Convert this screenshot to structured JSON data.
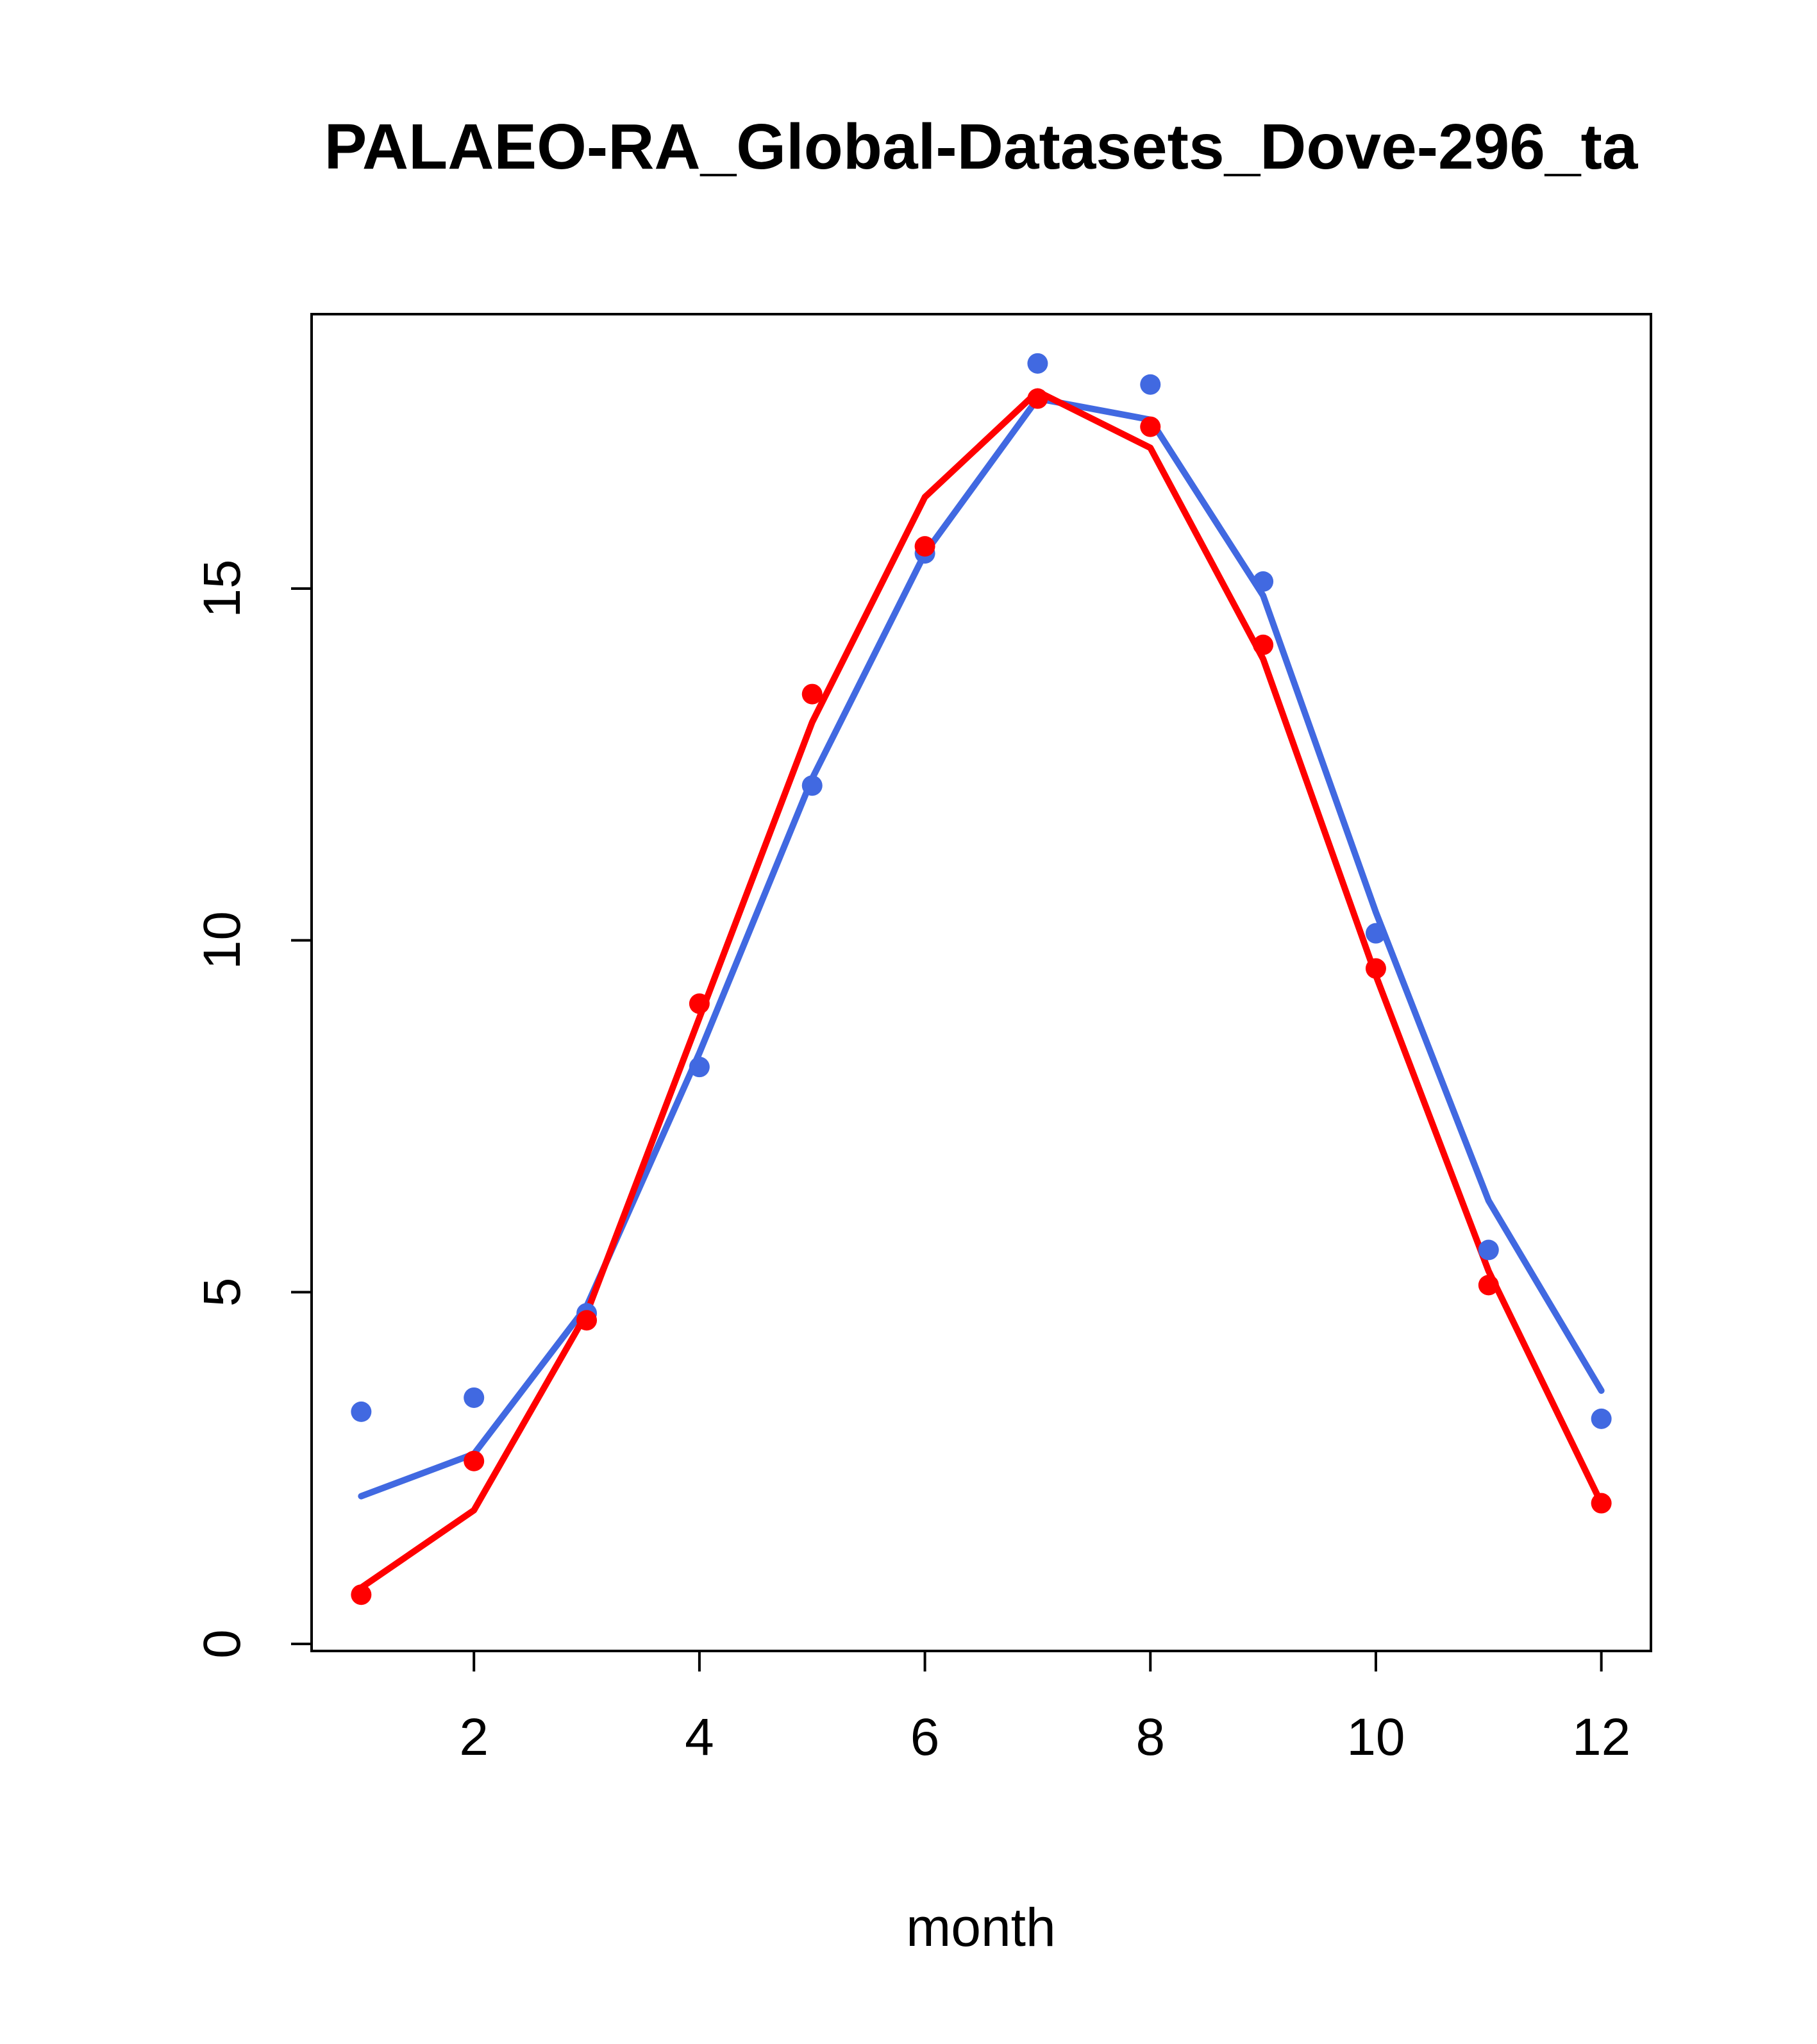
{
  "chart_data": {
    "type": "line",
    "title": "PALAEO-RA_Global-Datasets_Dove-296_ta",
    "xlabel": "month",
    "ylabel": "",
    "x": [
      1,
      2,
      3,
      4,
      5,
      6,
      7,
      8,
      9,
      10,
      11,
      12
    ],
    "xlim": [
      0.56,
      12.44
    ],
    "ylim": [
      -0.1,
      18.9
    ],
    "xticks": [
      2,
      4,
      6,
      8,
      10,
      12
    ],
    "yticks": [
      0,
      5,
      10,
      15
    ],
    "grid": false,
    "legend": "none",
    "colors": {
      "series_blue": "#4169E1",
      "series_red": "#FF0000",
      "axis": "#000000",
      "background": "#FFFFFF"
    },
    "series": [
      {
        "name": "blue-line",
        "type": "line",
        "color": "#4169E1",
        "values": [
          2.1,
          2.7,
          4.8,
          8.4,
          12.3,
          15.5,
          17.7,
          17.4,
          14.9,
          10.4,
          6.3,
          3.6
        ]
      },
      {
        "name": "red-line",
        "type": "line",
        "color": "#FF0000",
        "values": [
          0.8,
          1.9,
          4.7,
          8.9,
          13.1,
          16.3,
          17.8,
          17.0,
          14.0,
          9.5,
          5.3,
          2.0
        ]
      },
      {
        "name": "blue-points",
        "type": "scatter",
        "color": "#4169E1",
        "values": [
          3.3,
          3.5,
          4.7,
          8.2,
          12.2,
          15.5,
          18.2,
          17.9,
          15.1,
          10.1,
          5.6,
          3.2
        ]
      },
      {
        "name": "red-points",
        "type": "scatter",
        "color": "#FF0000",
        "values": [
          0.7,
          2.6,
          4.6,
          9.1,
          13.5,
          15.6,
          17.7,
          17.3,
          14.2,
          9.6,
          5.1,
          2.0
        ]
      }
    ]
  }
}
